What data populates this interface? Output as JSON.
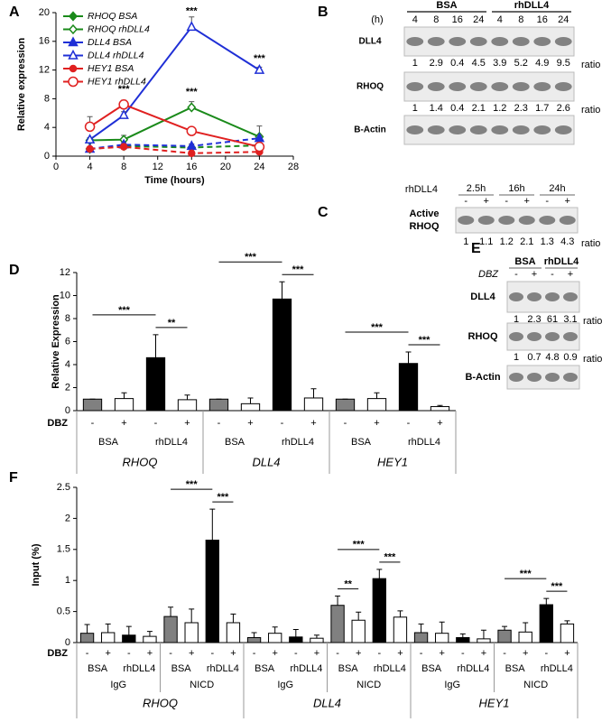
{
  "panel_labels": [
    "A",
    "B",
    "C",
    "D",
    "E",
    "F"
  ],
  "chart_data": [
    {
      "type": "line",
      "y_label": "Relative expression",
      "x_label": "Time (hours)",
      "x": [
        4,
        8,
        16,
        24
      ],
      "xlim": [
        0,
        28
      ],
      "xticks": [
        0,
        4,
        8,
        12,
        16,
        20,
        24,
        28
      ],
      "ylim": [
        0,
        20
      ],
      "yticks": [
        0,
        4,
        8,
        12,
        16,
        20
      ],
      "series": [
        {
          "name": "RHOQ BSA",
          "color": "#1a8a1a",
          "marker": "diamond",
          "filled": true,
          "dashed": true,
          "values": [
            1,
            1.4,
            1.2,
            1.5
          ],
          "errors": [
            0.2,
            0.3,
            0.3,
            0.3
          ]
        },
        {
          "name": "RHOQ rhDLL4",
          "color": "#1a8a1a",
          "marker": "diamond",
          "filled": false,
          "dashed": false,
          "values": [
            2.2,
            2.3,
            6.8,
            2.7
          ],
          "errors": [
            0.3,
            0.6,
            0.8,
            1.5
          ]
        },
        {
          "name": "DLL4 BSA",
          "color": "#1f2fd6",
          "marker": "triangle",
          "filled": true,
          "dashed": true,
          "values": [
            1,
            1.6,
            1.4,
            2.5
          ],
          "errors": [
            0.2,
            0.3,
            0.3,
            0.4
          ]
        },
        {
          "name": "DLL4 rhDLL4",
          "color": "#1f2fd6",
          "marker": "triangle",
          "filled": false,
          "dashed": false,
          "values": [
            2.3,
            5.7,
            18,
            12
          ],
          "errors": [
            0.3,
            0.5,
            1.4,
            0.4
          ]
        },
        {
          "name": "HEY1 BSA",
          "color": "#e02020",
          "marker": "circle",
          "filled": true,
          "dashed": true,
          "values": [
            1,
            1.3,
            0.4,
            0.6
          ],
          "errors": [
            0.2,
            0.3,
            0.2,
            0.2
          ]
        },
        {
          "name": "HEY1 rhDLL4",
          "color": "#e02020",
          "marker": "circle",
          "filled": false,
          "dashed": false,
          "values": [
            4.1,
            7.2,
            3.5,
            1.3
          ],
          "errors": [
            1.4,
            0.6,
            0.5,
            0.5
          ]
        }
      ],
      "annotations": [
        {
          "label": "***",
          "x": 8,
          "y": 9.3
        },
        {
          "label": "***",
          "x": 16,
          "y": 20.2
        },
        {
          "label": "***",
          "x": 16,
          "y": 8.9
        },
        {
          "label": "***",
          "x": 24,
          "y": 13.6
        }
      ]
    },
    {
      "type": "grouped_bar",
      "y_label": "Relative Expression",
      "ylim": [
        0,
        12
      ],
      "yticks": [
        0,
        2,
        4,
        6,
        8,
        10,
        12
      ],
      "dbz_label": "DBZ",
      "bar_colors": [
        "#808080",
        "#ffffff",
        "#000000",
        "#ffffff"
      ],
      "groups": [
        {
          "name": "RHOQ",
          "subgroups": [
            {
              "dbz": [
                "-",
                "+",
                "-",
                "+"
              ],
              "conditions": [
                "BSA",
                "rhDLL4"
              ],
              "values": [
                1,
                1.05,
                4.6,
                0.95
              ],
              "errors": [
                0,
                0.5,
                2.0,
                0.4
              ],
              "significance": [
                {
                  "label": "**",
                  "bars": [
                    2,
                    3
                  ]
                },
                {
                  "label": "***",
                  "bars": [
                    0,
                    2
                  ]
                }
              ]
            }
          ]
        },
        {
          "name": "DLL4",
          "subgroups": [
            {
              "dbz": [
                "-",
                "+",
                "-",
                "+"
              ],
              "conditions": [
                "BSA",
                "rhDLL4"
              ],
              "values": [
                1,
                0.6,
                9.7,
                1.1
              ],
              "errors": [
                0,
                0.5,
                1.5,
                0.8
              ],
              "significance": [
                {
                  "label": "***",
                  "bars": [
                    2,
                    3
                  ]
                },
                {
                  "label": "***",
                  "bars": [
                    0,
                    2
                  ]
                }
              ]
            }
          ]
        },
        {
          "name": "HEY1",
          "subgroups": [
            {
              "dbz": [
                "-",
                "+",
                "-",
                "+"
              ],
              "conditions": [
                "BSA",
                "rhDLL4"
              ],
              "values": [
                1,
                1.05,
                4.1,
                0.35
              ],
              "errors": [
                0,
                0.5,
                1.0,
                0.1
              ],
              "significance": [
                {
                  "label": "***",
                  "bars": [
                    2,
                    3
                  ]
                },
                {
                  "label": "***",
                  "bars": [
                    0,
                    2
                  ]
                }
              ]
            }
          ]
        }
      ]
    },
    {
      "type": "grouped_bar",
      "y_label": "Input (%)",
      "ylim": [
        0,
        2.5
      ],
      "yticks": [
        0,
        0.5,
        1,
        1.5,
        2,
        2.5
      ],
      "dbz_label": "DBZ",
      "bar_colors": [
        "#808080",
        "#ffffff",
        "#000000",
        "#ffffff"
      ],
      "groups": [
        {
          "name": "RHOQ",
          "subgroups": [
            {
              "name": "IgG",
              "dbz": [
                "-",
                "+",
                "-",
                "+"
              ],
              "conditions": [
                "BSA",
                "rhDLL4"
              ],
              "values": [
                0.15,
                0.16,
                0.12,
                0.1
              ],
              "errors": [
                0.14,
                0.14,
                0.14,
                0.08
              ],
              "significance": []
            },
            {
              "name": "NICD",
              "dbz": [
                "-",
                "+",
                "-",
                "+"
              ],
              "conditions": [
                "BSA",
                "rhDLL4"
              ],
              "values": [
                0.42,
                0.32,
                1.65,
                0.32
              ],
              "errors": [
                0.15,
                0.22,
                0.5,
                0.14
              ],
              "significance": [
                {
                  "label": "***",
                  "bars": [
                    2,
                    3
                  ]
                },
                {
                  "label": "***",
                  "bars": [
                    0,
                    2
                  ]
                }
              ]
            }
          ]
        },
        {
          "name": "DLL4",
          "subgroups": [
            {
              "name": "IgG",
              "dbz": [
                "-",
                "+",
                "-",
                "+"
              ],
              "conditions": [
                "BSA",
                "rhDLL4"
              ],
              "values": [
                0.08,
                0.15,
                0.09,
                0.07
              ],
              "errors": [
                0.08,
                0.1,
                0.12,
                0.05
              ],
              "significance": []
            },
            {
              "name": "NICD",
              "dbz": [
                "-",
                "+",
                "-",
                "+"
              ],
              "conditions": [
                "BSA",
                "rhDLL4"
              ],
              "values": [
                0.6,
                0.36,
                1.03,
                0.41
              ],
              "errors": [
                0.15,
                0.13,
                0.15,
                0.1
              ],
              "significance": [
                {
                  "label": "**",
                  "bars": [
                    0,
                    1
                  ]
                },
                {
                  "label": "***",
                  "bars": [
                    2,
                    3
                  ]
                },
                {
                  "label": "***",
                  "bars": [
                    0,
                    2
                  ]
                }
              ]
            }
          ]
        },
        {
          "name": "HEY1",
          "subgroups": [
            {
              "name": "IgG",
              "dbz": [
                "-",
                "+",
                "-",
                "+"
              ],
              "conditions": [
                "BSA",
                "rhDLL4"
              ],
              "values": [
                0.16,
                0.15,
                0.08,
                0.06
              ],
              "errors": [
                0.14,
                0.18,
                0.06,
                0.14
              ],
              "significance": []
            },
            {
              "name": "NICD",
              "dbz": [
                "-",
                "+",
                "-",
                "+"
              ],
              "conditions": [
                "BSA",
                "rhDLL4"
              ],
              "values": [
                0.2,
                0.17,
                0.61,
                0.3
              ],
              "errors": [
                0.06,
                0.15,
                0.1,
                0.05
              ],
              "significance": [
                {
                  "label": "***",
                  "bars": [
                    2,
                    3
                  ]
                },
                {
                  "label": "***",
                  "bars": [
                    0,
                    2
                  ]
                }
              ]
            }
          ]
        }
      ]
    }
  ],
  "blots": {
    "B": {
      "unit": "(h)",
      "conditions": [
        {
          "name": "BSA",
          "lanes": [
            "4",
            "8",
            "16",
            "24"
          ]
        },
        {
          "name": "rhDLL4",
          "lanes": [
            "4",
            "8",
            "16",
            "24"
          ]
        }
      ],
      "rows": [
        {
          "name": "DLL4",
          "ratios": [
            1,
            2.9,
            0.4,
            4.5,
            3.9,
            5.2,
            4.9,
            9.5
          ],
          "ratio_label": "ratio"
        },
        {
          "name": "RHOQ",
          "ratios": [
            1,
            1.4,
            0.4,
            2.1,
            1.2,
            2.3,
            1.7,
            2.6
          ],
          "ratio_label": "ratio"
        },
        {
          "name": "B-Actin"
        }
      ]
    },
    "C": {
      "treatment": "rhDLL4",
      "times": [
        "2.5h",
        "16h",
        "24h"
      ],
      "signs": [
        "-",
        "+",
        "-",
        "+",
        "-",
        "+"
      ],
      "row": {
        "name": [
          "Active",
          "RHOQ"
        ],
        "ratios": [
          1,
          1.1,
          1.2,
          2.1,
          1.3,
          4.3
        ],
        "ratio_label": "ratio"
      }
    },
    "E": {
      "conditions": [
        "BSA",
        "rhDLL4"
      ],
      "dbz_label": "DBZ",
      "signs": [
        "-",
        "+",
        "-",
        "+"
      ],
      "rows": [
        {
          "name": "DLL4",
          "ratios": [
            1,
            2.3,
            61,
            3.1
          ],
          "ratio_label": "ratio"
        },
        {
          "name": "RHOQ",
          "ratios": [
            1,
            0.7,
            4.8,
            0.9
          ],
          "ratio_label": "ratio"
        },
        {
          "name": "B-Actin"
        }
      ]
    }
  }
}
